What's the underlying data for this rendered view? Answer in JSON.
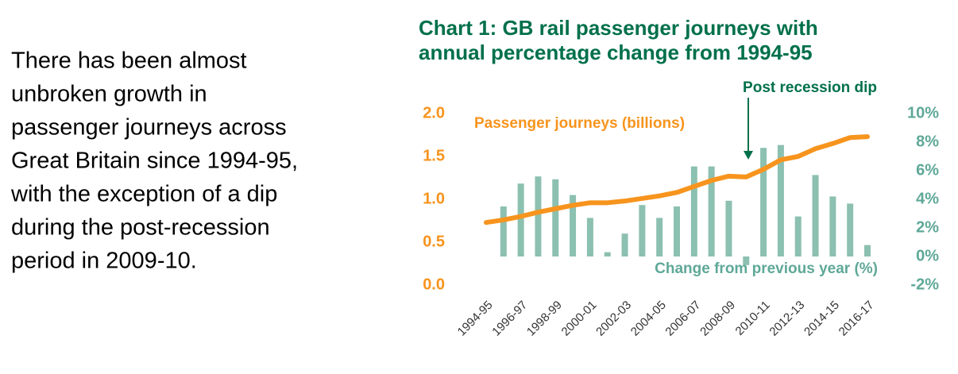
{
  "text": {
    "lines": [
      "There has been almost",
      "unbroken growth in",
      "passenger journeys across",
      "Great Britain since 1994-95,",
      "with the exception of a dip",
      "during the post-recession",
      "period in 2009-10."
    ]
  },
  "chart_data": {
    "type": "combo",
    "title": [
      "Chart 1: GB rail passenger journeys with",
      "annual percentage change from 1994-95"
    ],
    "annotation": "Post recession dip",
    "categories": [
      "1994-95",
      null,
      "1996-97",
      null,
      "1998-99",
      null,
      "2000-01",
      null,
      "2002-03",
      null,
      "2004-05",
      null,
      "2006-07",
      null,
      "2008-09",
      null,
      "2010-11",
      null,
      "2012-13",
      null,
      "2014-15",
      null,
      "2016-17"
    ],
    "series": [
      {
        "name": "Change from previous year (%)",
        "type": "bar",
        "axis": "y2",
        "color": "#8cc0b0",
        "values": [
          null,
          3.5,
          5.1,
          5.6,
          5.4,
          4.3,
          2.7,
          0.3,
          1.6,
          3.6,
          2.7,
          3.5,
          6.3,
          6.3,
          3.9,
          -0.6,
          7.6,
          7.8,
          2.8,
          5.7,
          4.2,
          3.7,
          0.8
        ]
      },
      {
        "name": "Passenger journeys (billions)",
        "type": "line",
        "color": "#f7941d",
        "values": [
          0.73,
          0.76,
          0.8,
          0.85,
          0.89,
          0.93,
          0.96,
          0.96,
          0.98,
          1.01,
          1.04,
          1.08,
          1.15,
          1.22,
          1.27,
          1.26,
          1.35,
          1.46,
          1.5,
          1.59,
          1.65,
          1.72,
          1.73
        ]
      }
    ],
    "ylim": [
      0,
      2
    ],
    "yticks": [
      {
        "value": 0,
        "label": "0.0"
      },
      0.5,
      {
        "value": 1,
        "label": "1.0"
      },
      1.5,
      {
        "value": 2,
        "label": "2.0"
      }
    ],
    "y2lim": [
      -2,
      10
    ],
    "y2ticks": [
      {
        "value": -2,
        "label": "-2%"
      },
      {
        "value": 0,
        "label": "0%"
      },
      {
        "value": 2,
        "label": "2%"
      },
      {
        "value": 4,
        "label": "4%"
      },
      {
        "value": 6,
        "label": "6%"
      },
      {
        "value": 8,
        "label": "8%"
      },
      {
        "value": 10,
        "label": "10%"
      }
    ]
  }
}
